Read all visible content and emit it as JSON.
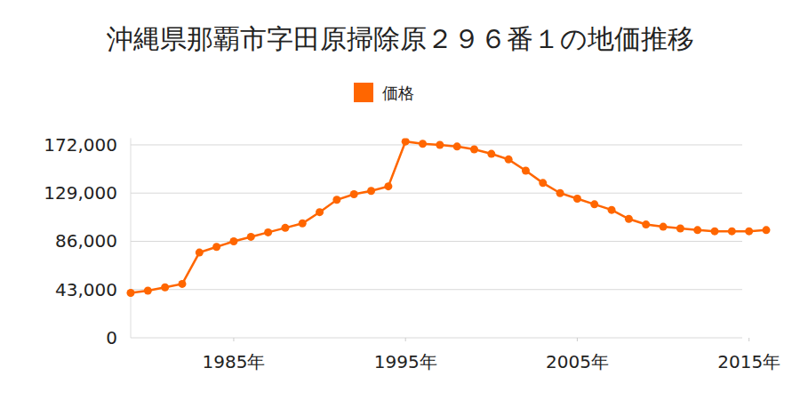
{
  "chart_data": {
    "type": "line",
    "title": "沖縄県那覇市字田原掃除原２９６番１の地価推移",
    "x": [
      1979,
      1980,
      1981,
      1982,
      1983,
      1984,
      1985,
      1986,
      1987,
      1988,
      1989,
      1990,
      1991,
      1992,
      1993,
      1994,
      1995,
      1996,
      1997,
      1998,
      1999,
      2000,
      2001,
      2002,
      2003,
      2004,
      2005,
      2006,
      2007,
      2008,
      2009,
      2010,
      2011,
      2012,
      2013,
      2014,
      2015,
      2016
    ],
    "series": [
      {
        "name": "価格",
        "color": "#ff6600",
        "marker": "circle",
        "line_style": "solid",
        "values": [
          40000,
          42000,
          45000,
          48000,
          76000,
          81000,
          86000,
          90000,
          94000,
          98000,
          102000,
          112000,
          123000,
          128000,
          131000,
          135000,
          175000,
          173000,
          172000,
          170500,
          168000,
          164000,
          159000,
          149000,
          138000,
          129000,
          124000,
          119000,
          114000,
          106000,
          101000,
          99000,
          97500,
          96000,
          95000,
          95000,
          95000,
          96000
        ]
      }
    ],
    "xlim": [
      1979,
      2016
    ],
    "xticks": [
      {
        "value": 1985,
        "label": "1985年"
      },
      {
        "value": 1995,
        "label": "1995年"
      },
      {
        "value": 2005,
        "label": "2005年"
      },
      {
        "value": 2015,
        "label": "2015年"
      }
    ],
    "ylim": [
      0,
      178000
    ],
    "yticks": [
      0,
      {
        "value": 43000,
        "label": "43,000"
      },
      {
        "value": 86000,
        "label": "86,000"
      },
      {
        "value": 129000,
        "label": "129,000"
      },
      {
        "value": 172000,
        "label": "172,000"
      }
    ],
    "grid": true,
    "legend": "top"
  }
}
